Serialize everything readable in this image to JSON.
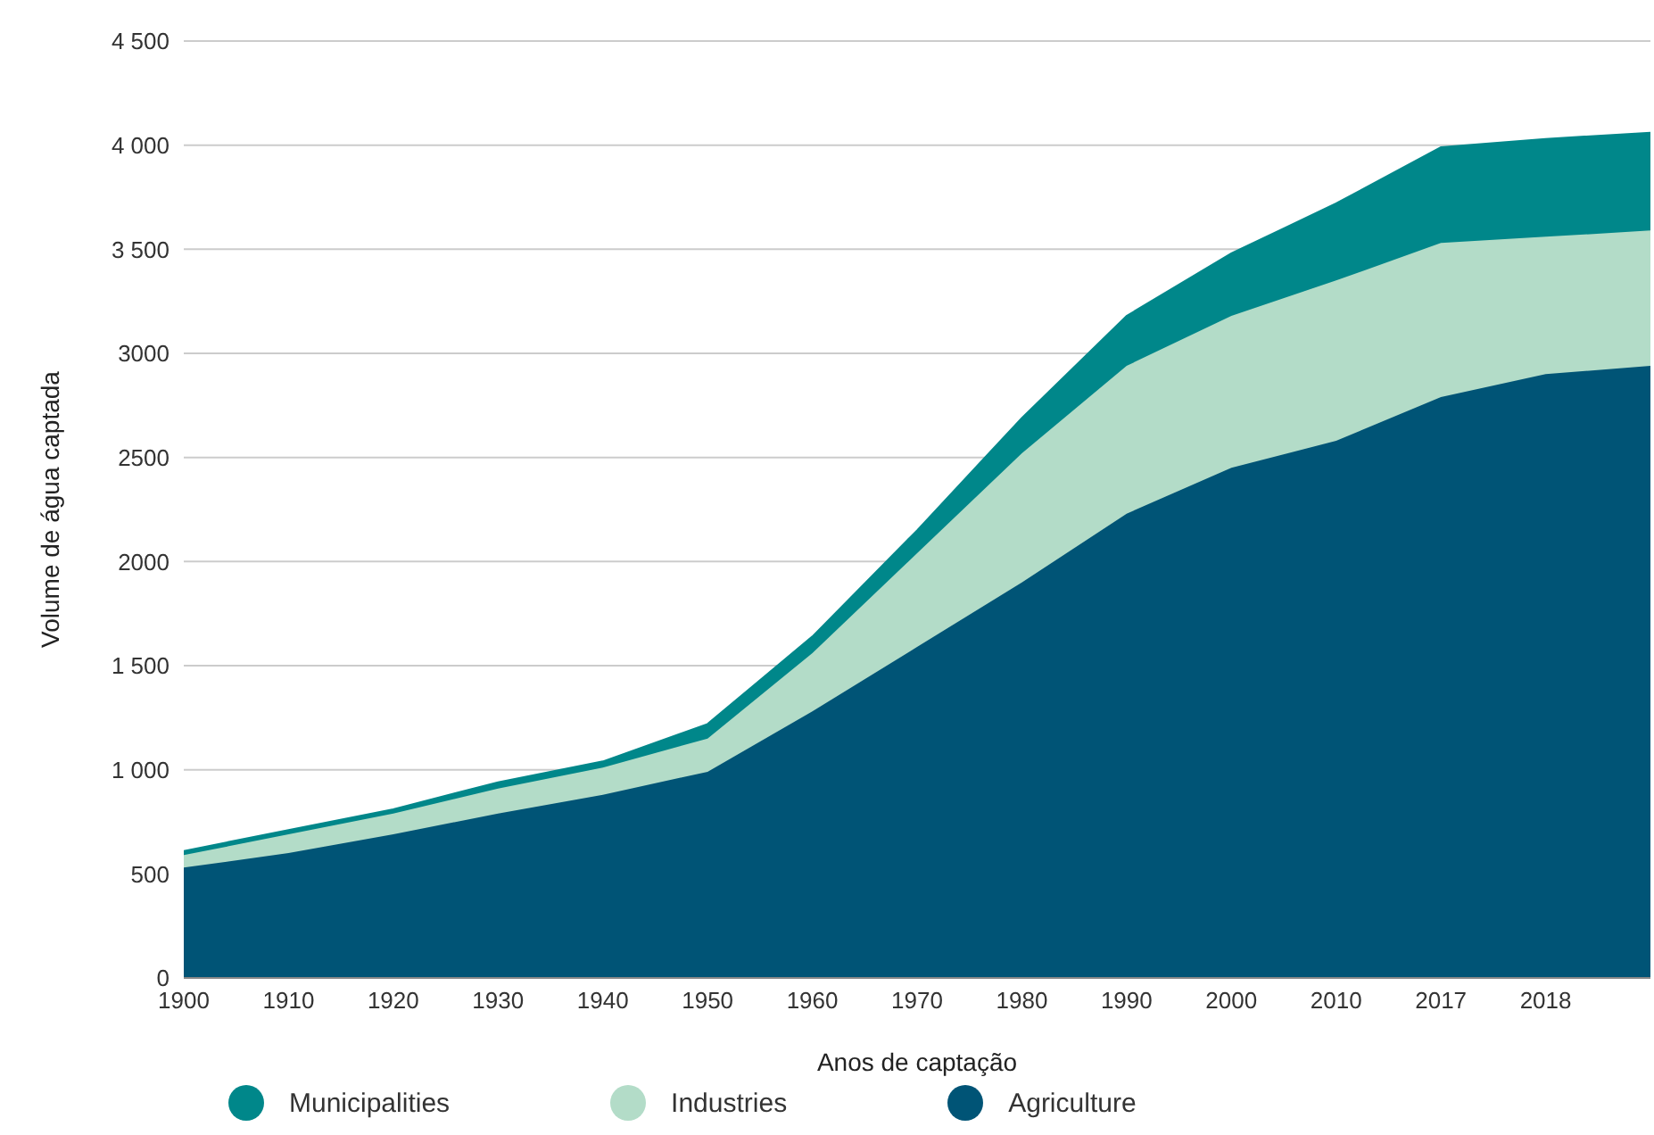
{
  "chart_data": {
    "type": "area",
    "stacked": true,
    "xlabel": "Anos de captação",
    "ylabel": "Volume de água captada",
    "categories": [
      "1900",
      "1910",
      "1920",
      "1930",
      "1940",
      "1950",
      "1960",
      "1970",
      "1980",
      "1990",
      "2000",
      "2010",
      "2017",
      "2018",
      null
    ],
    "series": [
      {
        "name": "Agriculture",
        "color": "#005476",
        "values": [
          530,
          600,
          690,
          790,
          880,
          990,
          1280,
          1590,
          1900,
          2230,
          2450,
          2580,
          2790,
          2900,
          2940
        ]
      },
      {
        "name": "Industries",
        "color": "#b3dcc8",
        "values": [
          60,
          90,
          100,
          120,
          130,
          160,
          280,
          450,
          620,
          710,
          730,
          770,
          740,
          660,
          650
        ]
      },
      {
        "name": "Municipalities",
        "color": "#00878a",
        "values": [
          20,
          20,
          20,
          30,
          30,
          70,
          80,
          110,
          170,
          240,
          300,
          370,
          460,
          470,
          470
        ]
      }
    ],
    "ylim": [
      0,
      4500
    ],
    "yticks": [
      0,
      500,
      {
        "value": 1000,
        "label": "1 000"
      },
      {
        "value": 1500,
        "label": "1 500"
      },
      2000,
      2500,
      3000,
      {
        "value": 3500,
        "label": "3 500"
      },
      {
        "value": 4000,
        "label": "4 000"
      },
      {
        "value": 4500,
        "label": "4 500"
      }
    ],
    "grid": "y",
    "legend": "bottom"
  }
}
